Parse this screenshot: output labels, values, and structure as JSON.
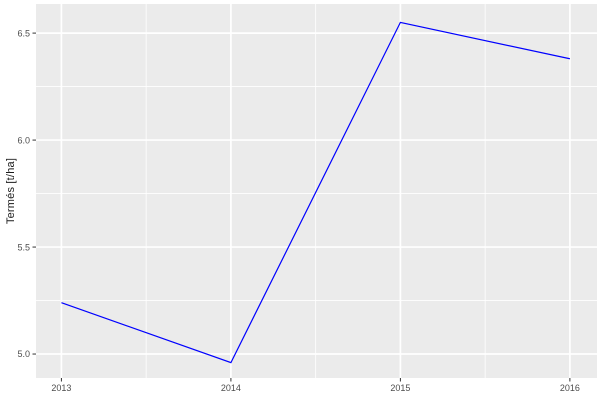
{
  "figure": {
    "background": "#FFFFFF",
    "panel_background": "#EBEBEB",
    "grid_color": "#FFFFFF",
    "tick_mark_color": "#333333",
    "tick_label_color": "#4D4D4D",
    "axis_title_color": "#1A1A1A"
  },
  "chart_data": {
    "type": "line",
    "title": "",
    "xlabel": "",
    "ylabel": "Termés [t/ha]",
    "x": [
      2013,
      2014,
      2015,
      2016
    ],
    "series": [
      {
        "name": "Termés",
        "color": "#0000FF",
        "values": [
          5.24,
          4.96,
          6.55,
          6.38
        ]
      }
    ],
    "xticks": {
      "values": [
        2013,
        2014,
        2015,
        2016
      ],
      "labels": [
        "2013",
        "2014",
        "2015",
        "2016"
      ]
    },
    "yticks": {
      "values": [
        5.0,
        5.5,
        6.0,
        6.5
      ],
      "labels": [
        "5.0",
        "5.5",
        "6.0",
        "6.5"
      ]
    },
    "xlim": [
      2012.85,
      2016.16
    ],
    "ylim": [
      4.888,
      6.636
    ],
    "grid": "major+minor",
    "legend": "none"
  }
}
